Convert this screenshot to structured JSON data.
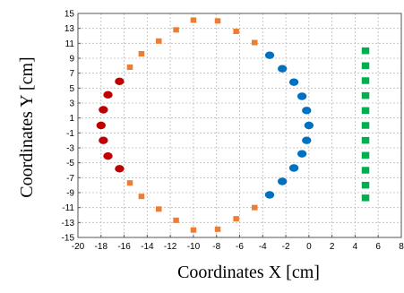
{
  "chart_data": {
    "type": "scatter",
    "xlabel": "Coordinates X [cm]",
    "ylabel": "Coordinates Y [cm]",
    "xlim": [
      -20,
      8
    ],
    "ylim": [
      -15,
      15
    ],
    "x_ticks": [
      -20,
      -18,
      -16,
      -14,
      -12,
      -10,
      -8,
      -6,
      -4,
      -2,
      0,
      2,
      4,
      6,
      8
    ],
    "y_ticks": [
      -15,
      -13,
      -11,
      -9,
      -7,
      -5,
      -3,
      -1,
      1,
      3,
      5,
      7,
      9,
      11,
      13,
      15
    ],
    "x_tick_labels": [
      "-20",
      "-18",
      "-16",
      "-14",
      "-12",
      "-10",
      "-8",
      "-6",
      "-4",
      "-2",
      "0",
      "2",
      "4",
      "6",
      "8"
    ],
    "y_tick_labels": [
      "-15",
      "-13",
      "-11",
      "-9",
      "-7",
      "-5",
      "-3",
      "-1",
      "1",
      "3",
      "5",
      "7",
      "9",
      "11",
      "13",
      "15"
    ],
    "grid": true,
    "series": [
      {
        "color": "#c00000",
        "marker": "circle",
        "points": [
          [
            -16.4,
            5.9
          ],
          [
            -17.4,
            4.1
          ],
          [
            -17.8,
            2.1
          ],
          [
            -18.0,
            0.0
          ],
          [
            -17.8,
            -2.0
          ],
          [
            -17.4,
            -4.1
          ],
          [
            -16.4,
            -5.8
          ]
        ]
      },
      {
        "color": "#0070c0",
        "marker": "circle",
        "points": [
          [
            -3.4,
            9.4
          ],
          [
            -2.3,
            7.6
          ],
          [
            -1.3,
            5.8
          ],
          [
            -0.6,
            3.9
          ],
          [
            -0.2,
            2.0
          ],
          [
            0.0,
            0.0
          ],
          [
            -0.2,
            -2.0
          ],
          [
            -0.6,
            -3.8
          ],
          [
            -1.3,
            -5.7
          ],
          [
            -2.3,
            -7.5
          ],
          [
            -3.4,
            -9.3
          ]
        ]
      },
      {
        "color": "#ed7d31",
        "marker": "square",
        "points": [
          [
            -15.5,
            7.8
          ],
          [
            -14.5,
            9.6
          ],
          [
            -13.0,
            11.3
          ],
          [
            -11.5,
            12.8
          ],
          [
            -10.0,
            14.1
          ],
          [
            -7.9,
            14.0
          ],
          [
            -6.3,
            12.6
          ],
          [
            -4.7,
            11.1
          ],
          [
            -15.5,
            -7.7
          ],
          [
            -14.5,
            -9.5
          ],
          [
            -13.0,
            -11.2
          ],
          [
            -11.5,
            -12.7
          ],
          [
            -10.0,
            -14.0
          ],
          [
            -7.9,
            -13.9
          ],
          [
            -6.3,
            -12.5
          ],
          [
            -4.7,
            -11.0
          ]
        ]
      },
      {
        "color": "#00b050",
        "marker": "square",
        "points": [
          [
            4.9,
            10.0
          ],
          [
            4.9,
            8.0
          ],
          [
            4.9,
            6.0
          ],
          [
            4.9,
            4.0
          ],
          [
            4.9,
            2.0
          ],
          [
            4.9,
            0.0
          ],
          [
            4.9,
            -2.0
          ],
          [
            4.9,
            -4.0
          ],
          [
            4.9,
            -6.0
          ],
          [
            4.9,
            -8.0
          ],
          [
            4.9,
            -9.7
          ]
        ]
      }
    ]
  }
}
